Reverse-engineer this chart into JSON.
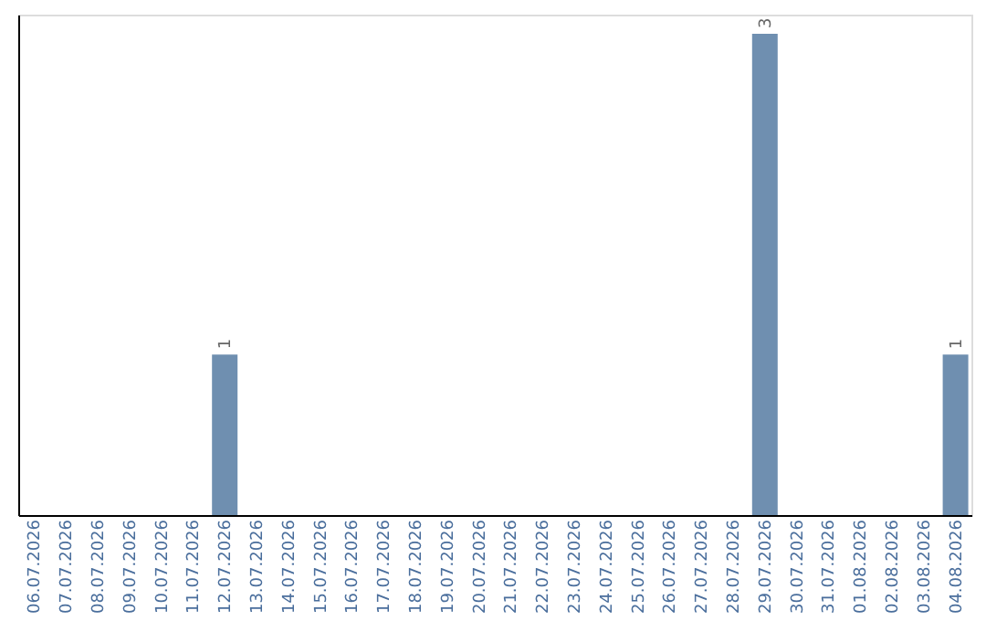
{
  "chart_data": {
    "type": "bar",
    "categories": [
      "06.07.2026",
      "07.07.2026",
      "08.07.2026",
      "09.07.2026",
      "10.07.2026",
      "11.07.2026",
      "12.07.2026",
      "13.07.2026",
      "14.07.2026",
      "15.07.2026",
      "16.07.2026",
      "17.07.2026",
      "18.07.2026",
      "19.07.2026",
      "20.07.2026",
      "21.07.2026",
      "22.07.2026",
      "23.07.2026",
      "24.07.2026",
      "25.07.2026",
      "26.07.2026",
      "27.07.2026",
      "28.07.2026",
      "29.07.2026",
      "30.07.2026",
      "31.07.2026",
      "01.08.2026",
      "02.08.2026",
      "03.08.2026",
      "04.08.2026"
    ],
    "values": [
      0,
      0,
      0,
      0,
      0,
      0,
      1,
      0,
      0,
      0,
      0,
      0,
      0,
      0,
      0,
      0,
      0,
      0,
      0,
      0,
      0,
      0,
      0,
      3,
      0,
      0,
      0,
      0,
      0,
      1
    ],
    "value_labels": [
      null,
      null,
      null,
      null,
      null,
      null,
      "1",
      null,
      null,
      null,
      null,
      null,
      null,
      null,
      null,
      null,
      null,
      null,
      null,
      null,
      null,
      null,
      null,
      "3",
      null,
      null,
      null,
      null,
      null,
      "1"
    ],
    "color": "#6f8fb0",
    "ylim": [
      0,
      3.12
    ],
    "grid": false,
    "tick_labels": "x"
  }
}
